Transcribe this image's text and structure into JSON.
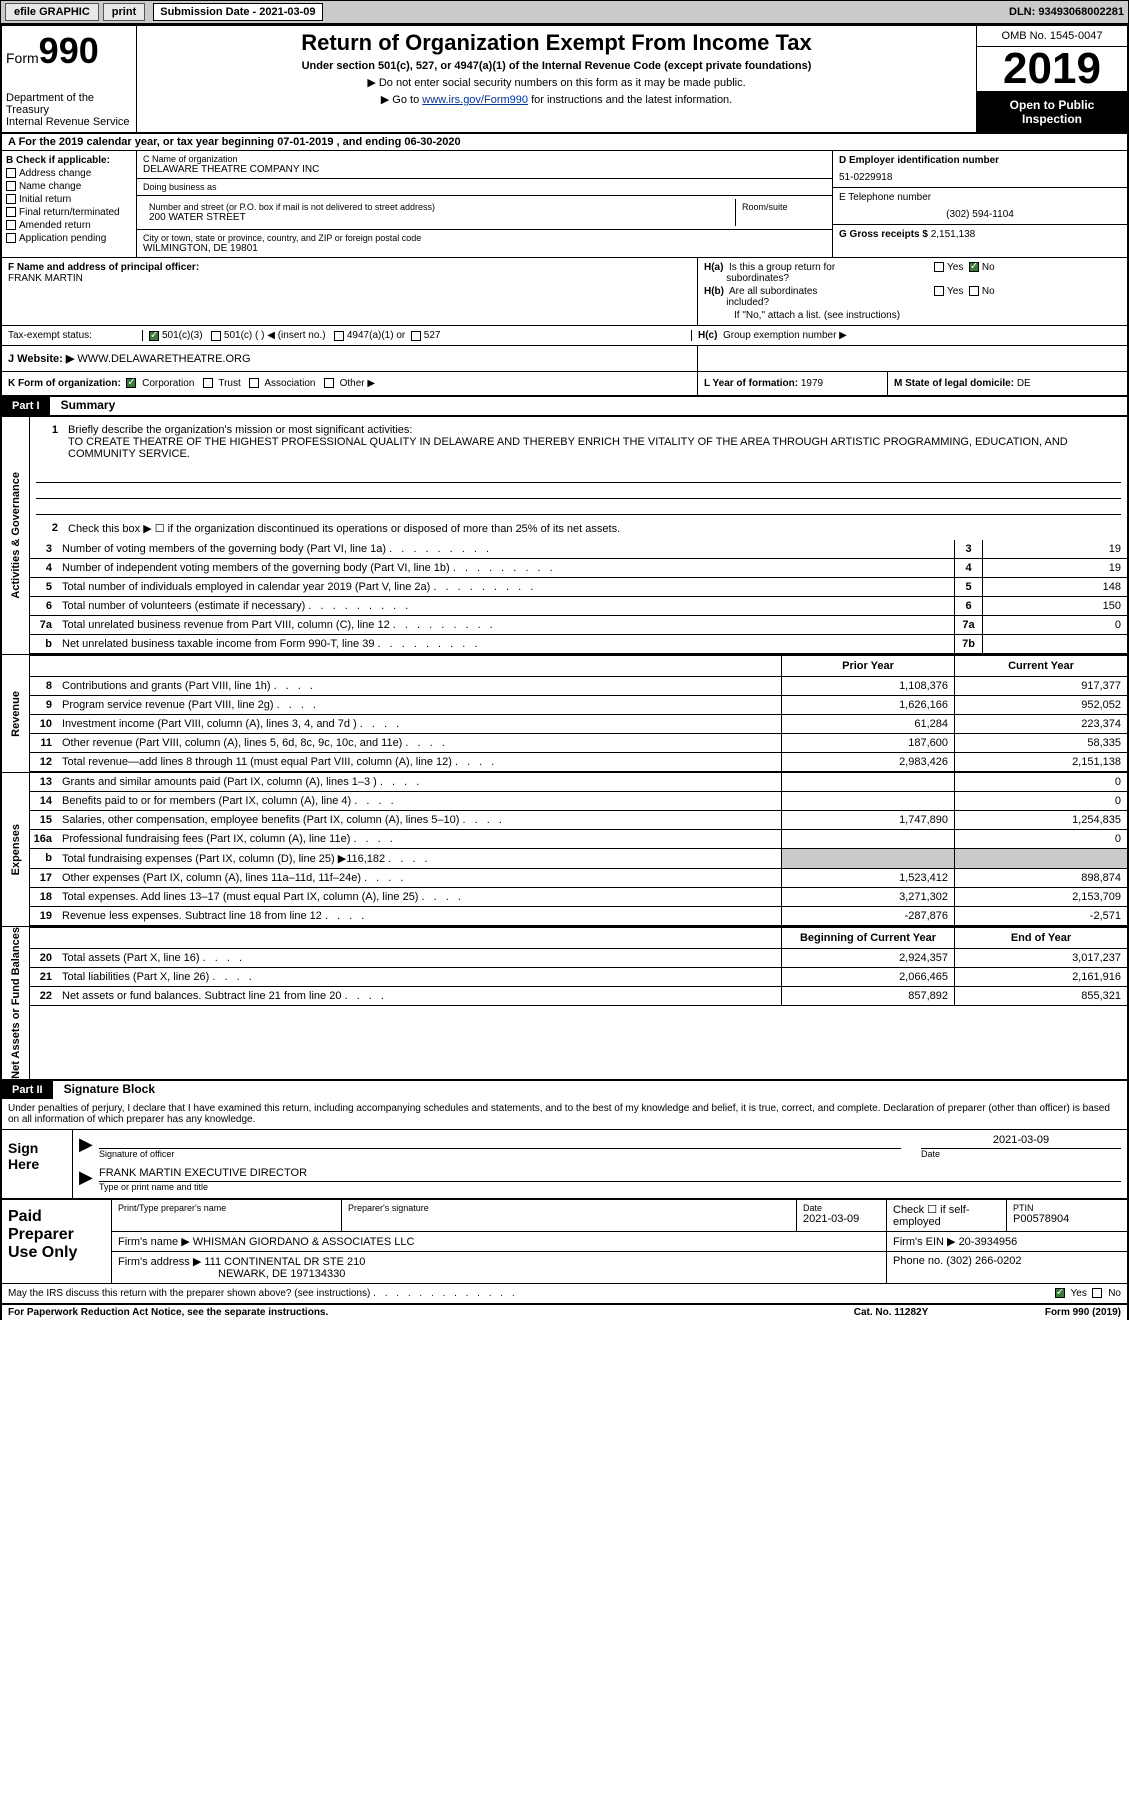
{
  "topbar": {
    "efile": "efile GRAPHIC",
    "print": "print",
    "submission_label": "Submission Date - 2021-03-09",
    "dln": "DLN: 93493068002281"
  },
  "header": {
    "form_prefix": "Form",
    "form_number": "990",
    "dept": "Department of the Treasury\nInternal Revenue Service",
    "title": "Return of Organization Exempt From Income Tax",
    "subtitle": "Under section 501(c), 527, or 4947(a)(1) of the Internal Revenue Code (except private foundations)",
    "arrow1": "▶ Do not enter social security numbers on this form as it may be made public.",
    "arrow2_pre": "▶ Go to ",
    "arrow2_link": "www.irs.gov/Form990",
    "arrow2_post": " for instructions and the latest information.",
    "omb": "OMB No. 1545-0047",
    "year": "2019",
    "open": "Open to Public Inspection"
  },
  "rowA": "A For the 2019 calendar year, or tax year beginning 07-01-2019    , and ending 06-30-2020",
  "colB": {
    "label": "B Check if applicable:",
    "opts": [
      "Address change",
      "Name change",
      "Initial return",
      "Final return/terminated",
      "Amended return",
      "Application pending"
    ]
  },
  "colC": {
    "name_lbl": "C Name of organization",
    "name": "DELAWARE THEATRE COMPANY INC",
    "dba_lbl": "Doing business as",
    "dba": "",
    "addr_lbl": "Number and street (or P.O. box if mail is not delivered to street address)",
    "addr": "200 WATER STREET",
    "room_lbl": "Room/suite",
    "room": "",
    "city_lbl": "City or town, state or province, country, and ZIP or foreign postal code",
    "city": "WILMINGTON, DE  19801"
  },
  "colD": {
    "lbl": "D Employer identification number",
    "val": "51-0229918"
  },
  "colE": {
    "lbl": "E Telephone number",
    "val": "(302) 594-1104"
  },
  "colG": {
    "lbl": "G Gross receipts $",
    "val": "2,151,138"
  },
  "colF": {
    "lbl": "F  Name and address of principal officer:",
    "val": "FRANK MARTIN"
  },
  "colH": {
    "a_lbl": "H(a)  Is this a group return for subordinates?",
    "a_yes": "Yes",
    "a_no": "No",
    "b_lbl": "H(b)  Are all subordinates included?",
    "b_yes": "Yes",
    "b_no": "No",
    "b_note": "If \"No,\" attach a list. (see instructions)",
    "c_lbl": "H(c)  Group exemption number ▶"
  },
  "taxStatus": {
    "lbl": "Tax-exempt status:",
    "opt1": "501(c)(3)",
    "opt2": "501(c) (   ) ◀ (insert no.)",
    "opt3": "4947(a)(1) or",
    "opt4": "527"
  },
  "rowJ": {
    "lbl": "J    Website: ▶",
    "val": "WWW.DELAWARETHEATRE.ORG"
  },
  "rowK": {
    "lbl": "K Form of organization:",
    "corp": "Corporation",
    "trust": "Trust",
    "assoc": "Association",
    "other": "Other ▶",
    "l_lbl": "L Year of formation:",
    "l_val": "1979",
    "m_lbl": "M State of legal domicile:",
    "m_val": "DE"
  },
  "part1": {
    "hdr": "Part I",
    "title": "Summary",
    "vlabels": [
      "Activities & Governance",
      "Revenue",
      "Expenses",
      "Net Assets or Fund Balances"
    ],
    "line1_lbl": "Briefly describe the organization's mission or most significant activities:",
    "line1_text": "TO CREATE THEATRE OF THE HIGHEST PROFESSIONAL QUALITY IN DELAWARE AND THEREBY ENRICH THE VITALITY OF THE AREA THROUGH ARTISTIC PROGRAMMING, EDUCATION, AND COMMUNITY SERVICE.",
    "line2": "Check this box ▶ ☐  if the organization discontinued its operations or disposed of more than 25% of its net assets.",
    "rows_ag": [
      {
        "n": "3",
        "t": "Number of voting members of the governing body (Part VI, line 1a)",
        "box": "3",
        "v": "19"
      },
      {
        "n": "4",
        "t": "Number of independent voting members of the governing body (Part VI, line 1b)",
        "box": "4",
        "v": "19"
      },
      {
        "n": "5",
        "t": "Total number of individuals employed in calendar year 2019 (Part V, line 2a)",
        "box": "5",
        "v": "148"
      },
      {
        "n": "6",
        "t": "Total number of volunteers (estimate if necessary)",
        "box": "6",
        "v": "150"
      },
      {
        "n": "7a",
        "t": "Total unrelated business revenue from Part VIII, column (C), line 12",
        "box": "7a",
        "v": "0"
      },
      {
        "n": "b",
        "t": "Net unrelated business taxable income from Form 990-T, line 39",
        "box": "7b",
        "v": ""
      }
    ],
    "colhead_py": "Prior Year",
    "colhead_cy": "Current Year",
    "rows_rev": [
      {
        "n": "8",
        "t": "Contributions and grants (Part VIII, line 1h)",
        "py": "1,108,376",
        "cy": "917,377"
      },
      {
        "n": "9",
        "t": "Program service revenue (Part VIII, line 2g)",
        "py": "1,626,166",
        "cy": "952,052"
      },
      {
        "n": "10",
        "t": "Investment income (Part VIII, column (A), lines 3, 4, and 7d )",
        "py": "61,284",
        "cy": "223,374"
      },
      {
        "n": "11",
        "t": "Other revenue (Part VIII, column (A), lines 5, 6d, 8c, 9c, 10c, and 11e)",
        "py": "187,600",
        "cy": "58,335"
      },
      {
        "n": "12",
        "t": "Total revenue—add lines 8 through 11 (must equal Part VIII, column (A), line 12)",
        "py": "2,983,426",
        "cy": "2,151,138"
      }
    ],
    "rows_exp": [
      {
        "n": "13",
        "t": "Grants and similar amounts paid (Part IX, column (A), lines 1–3 )",
        "py": "",
        "cy": "0"
      },
      {
        "n": "14",
        "t": "Benefits paid to or for members (Part IX, column (A), line 4)",
        "py": "",
        "cy": "0"
      },
      {
        "n": "15",
        "t": "Salaries, other compensation, employee benefits (Part IX, column (A), lines 5–10)",
        "py": "1,747,890",
        "cy": "1,254,835"
      },
      {
        "n": "16a",
        "t": "Professional fundraising fees (Part IX, column (A), line 11e)",
        "py": "",
        "cy": "0"
      },
      {
        "n": "b",
        "t": "Total fundraising expenses (Part IX, column (D), line 25) ▶116,182",
        "py": "SHADE",
        "cy": "SHADE"
      },
      {
        "n": "17",
        "t": "Other expenses (Part IX, column (A), lines 11a–11d, 11f–24e)",
        "py": "1,523,412",
        "cy": "898,874"
      },
      {
        "n": "18",
        "t": "Total expenses. Add lines 13–17 (must equal Part IX, column (A), line 25)",
        "py": "3,271,302",
        "cy": "2,153,709"
      },
      {
        "n": "19",
        "t": "Revenue less expenses. Subtract line 18 from line 12",
        "py": "-287,876",
        "cy": "-2,571"
      }
    ],
    "colhead2_py": "Beginning of Current Year",
    "colhead2_cy": "End of Year",
    "rows_na": [
      {
        "n": "20",
        "t": "Total assets (Part X, line 16)",
        "py": "2,924,357",
        "cy": "3,017,237"
      },
      {
        "n": "21",
        "t": "Total liabilities (Part X, line 26)",
        "py": "2,066,465",
        "cy": "2,161,916"
      },
      {
        "n": "22",
        "t": "Net assets or fund balances. Subtract line 21 from line 20",
        "py": "857,892",
        "cy": "855,321"
      }
    ]
  },
  "part2": {
    "hdr": "Part II",
    "title": "Signature Block",
    "decl": "Under penalties of perjury, I declare that I have examined this return, including accompanying schedules and statements, and to the best of my knowledge and belief, it is true, correct, and complete. Declaration of preparer (other than officer) is based on all information of which preparer has any knowledge.",
    "sign_here": "Sign Here",
    "sig_officer": "Signature of officer",
    "sig_date_lbl": "Date",
    "sig_date": "2021-03-09",
    "sig_name": "FRANK MARTIN  EXECUTIVE DIRECTOR",
    "sig_name_lbl": "Type or print name and title",
    "paid": "Paid Preparer Use Only",
    "pr_name_lbl": "Print/Type preparer's name",
    "pr_sig_lbl": "Preparer's signature",
    "pr_date_lbl": "Date",
    "pr_date": "2021-03-09",
    "pr_self_lbl": "Check ☐ if self-employed",
    "pr_ptin_lbl": "PTIN",
    "pr_ptin": "P00578904",
    "firm_name_lbl": "Firm's name    ▶",
    "firm_name": "WHISMAN GIORDANO & ASSOCIATES LLC",
    "firm_ein_lbl": "Firm's EIN ▶",
    "firm_ein": "20-3934956",
    "firm_addr_lbl": "Firm's address ▶",
    "firm_addr1": "111 CONTINENTAL DR STE 210",
    "firm_addr2": "NEWARK, DE  197134330",
    "firm_phone_lbl": "Phone no.",
    "firm_phone": "(302) 266-0202",
    "discuss": "May the IRS discuss this return with the preparer shown above? (see instructions)",
    "yes": "Yes",
    "no": "No"
  },
  "footer": {
    "note": "For Paperwork Reduction Act Notice, see the separate instructions.",
    "cat": "Cat. No. 11282Y",
    "form": "Form 990 (2019)"
  }
}
